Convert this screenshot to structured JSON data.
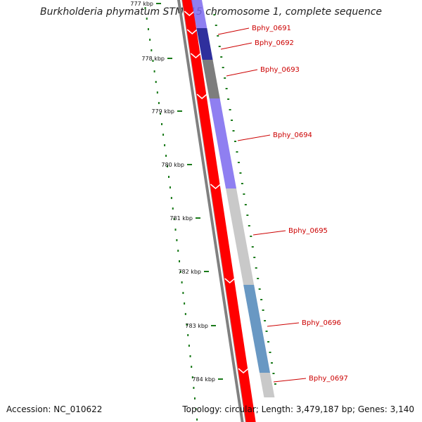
{
  "title": "Burkholderia phymatum STM815 chromosome 1, complete sequence",
  "footer": {
    "accession": "Accession: NC_010622",
    "summary": "Topology: circular; Length: 3,479,187 bp; Genes: 3,140"
  },
  "colors": {
    "backbone": "#808080",
    "forward_track": "#ff0000",
    "ticks": "#1a7a1a",
    "label_text": "#cc0000",
    "leader_line": "#cc0000"
  },
  "scale_ticks": [
    {
      "label": "777 kbp",
      "kbp": 777
    },
    {
      "label": "778 kbp",
      "kbp": 778
    },
    {
      "label": "779 kbp",
      "kbp": 779
    },
    {
      "label": "780 kbp",
      "kbp": 780
    },
    {
      "label": "781 kbp",
      "kbp": 781
    },
    {
      "label": "782 kbp",
      "kbp": 782
    },
    {
      "label": "783 kbp",
      "kbp": 783
    },
    {
      "label": "784 kbp",
      "kbp": 784
    }
  ],
  "genes": [
    {
      "name": "Bphy_0691",
      "strand": "+",
      "color": "#7b68ee"
    },
    {
      "name": "Bphy_0692",
      "strand": "+",
      "color": "#0b0b8c"
    },
    {
      "name": "Bphy_0693",
      "strand": "+",
      "color": "#666666"
    },
    {
      "name": "Bphy_0694",
      "strand": "+",
      "color": "#7b68ee"
    },
    {
      "name": "Bphy_0695",
      "strand": "+",
      "color": "#c0c0c0"
    },
    {
      "name": "Bphy_0696",
      "strand": "+",
      "color": "#4f86b8"
    },
    {
      "name": "Bphy_0697",
      "strand": "+",
      "color": "#c0c0c0"
    }
  ]
}
